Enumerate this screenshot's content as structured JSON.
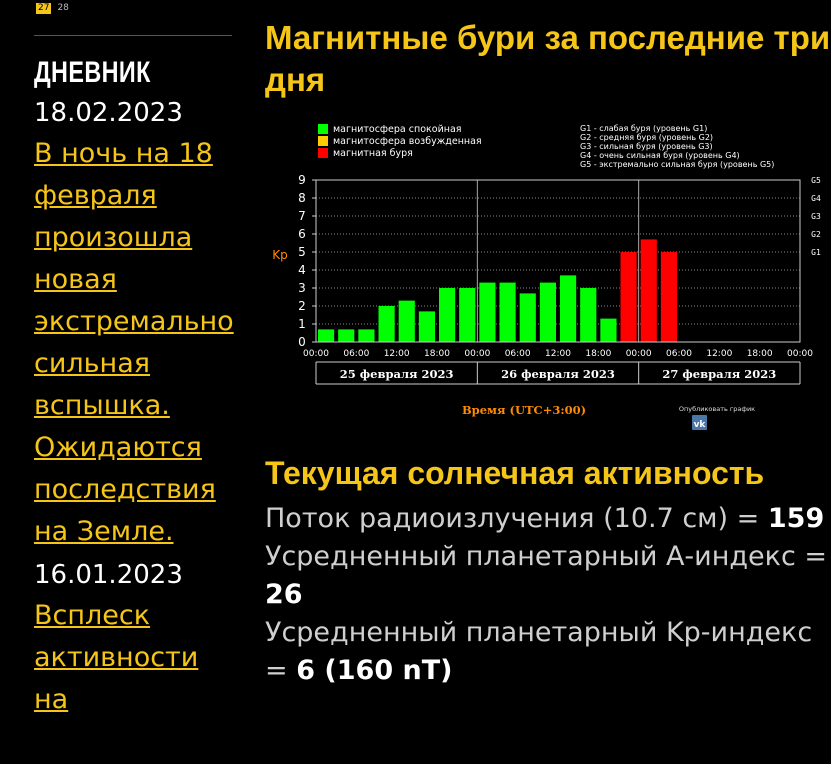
{
  "sidebar": {
    "calendar": {
      "today": "27",
      "next": "28"
    },
    "title": "ДНЕВНИК",
    "entries": [
      {
        "date": "18.02.2023",
        "link": "В ночь на 18 февраля произошла новая экстремально сильная вспышка. Ожидаются последствия на Земле."
      },
      {
        "date": "16.01.2023",
        "link": "Всплеск активности на"
      }
    ]
  },
  "main": {
    "title": "Магнитные бури за последние три дня",
    "activity_title": "Текущая солнечная активность",
    "radio_flux": {
      "label": "Поток радиоизлучения (10.7 см) =",
      "value": "159"
    },
    "a_index": {
      "label": "Усредненный планетарный А-индекс =",
      "value": "26"
    },
    "kp_index": {
      "label": "Усредненный планетарный Kp-индекс =",
      "value": "6 (160 nT)"
    }
  },
  "chart_data": {
    "type": "bar",
    "legend": [
      {
        "label": "магнитосфера спокойная",
        "color": "#00ff00"
      },
      {
        "label": "магнитосфера возбужденная",
        "color": "#ffcc00"
      },
      {
        "label": "магнитная буря",
        "color": "#ff0000"
      }
    ],
    "storm_legend": [
      "G1 - слабая буря (уровень G1)",
      "G2 - средняя буря (уровень G2)",
      "G3 - сильная буря (уровень G3)",
      "G4 - очень сильная буря (уровень G4)",
      "G5 - экстремально сильная буря (уровень G5)"
    ],
    "ylabel": "Kp",
    "ylim": [
      0,
      9
    ],
    "yticks": [
      "0",
      "1",
      "2",
      "3",
      "4",
      "5",
      "6",
      "7",
      "8",
      "9"
    ],
    "g_levels": [
      {
        "label": "G1",
        "kp": 5
      },
      {
        "label": "G2",
        "kp": 6
      },
      {
        "label": "G3",
        "kp": 7
      },
      {
        "label": "G4",
        "kp": 8
      },
      {
        "label": "G5",
        "kp": 9
      }
    ],
    "xticks": [
      "00:00",
      "06:00",
      "12:00",
      "18:00",
      "00:00",
      "06:00",
      "12:00",
      "18:00",
      "00:00",
      "06:00",
      "12:00",
      "18:00",
      "00:00"
    ],
    "days": [
      "25 февраля 2023",
      "26 февраля 2023",
      "27 февраля 2023"
    ],
    "xlabel": "Время (UTC+3:00)",
    "publish_label": "Опубликовать график",
    "publish_icon": "vk-icon",
    "bar_colors": {
      "quiet": "#00ff00",
      "storm": "#ff0000"
    },
    "values": [
      0.7,
      0.7,
      0.7,
      2.0,
      2.3,
      1.7,
      3.0,
      3.0,
      3.3,
      3.3,
      2.7,
      3.3,
      3.7,
      3.0,
      1.3,
      5.0,
      5.7,
      5.0
    ]
  }
}
